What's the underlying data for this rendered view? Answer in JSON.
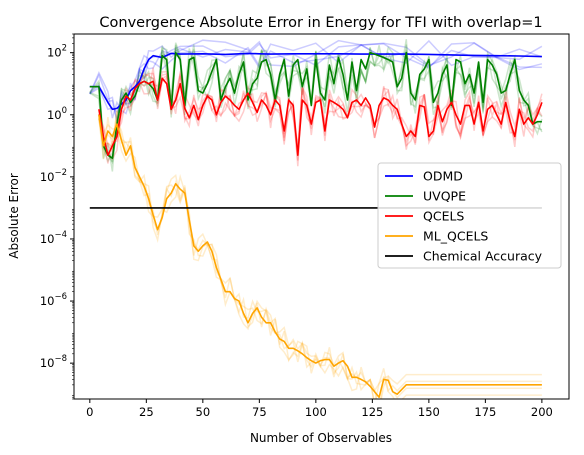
{
  "chart_data": {
    "type": "line",
    "title": "Convergence Absolute Error in Energy for TFI with overlap=1",
    "xlabel": "Number of Observables",
    "ylabel": "Absolute Error",
    "yscale": "log",
    "xlim": [
      -7,
      212
    ],
    "ylim": [
      7e-10,
      400
    ],
    "x_ticks": [
      0,
      25,
      50,
      75,
      100,
      125,
      150,
      175,
      200
    ],
    "y_ticks": [
      {
        "value": 1e-08,
        "base": "10",
        "exp": "−8"
      },
      {
        "value": 1e-06,
        "base": "10",
        "exp": "−6"
      },
      {
        "value": 0.0001,
        "base": "10",
        "exp": "−4"
      },
      {
        "value": 0.01,
        "base": "10",
        "exp": "−2"
      },
      {
        "value": 1,
        "base": "10",
        "exp": "0"
      },
      {
        "value": 100,
        "base": "10",
        "exp": "2"
      }
    ],
    "legend_position": "center-right",
    "series": [
      {
        "name": "ODMD",
        "color": "#0000ff",
        "x": [
          0,
          4,
          8,
          10,
          12,
          14,
          16,
          18,
          20,
          22,
          24,
          26,
          28,
          32,
          36,
          40,
          50,
          60,
          70,
          75,
          80,
          90,
          100,
          110,
          120,
          130,
          140,
          150,
          160,
          170,
          180,
          190,
          200
        ],
        "y": [
          8,
          8,
          2.5,
          1.5,
          1.6,
          2.2,
          3,
          6,
          8,
          12,
          30,
          60,
          80,
          70,
          95,
          90,
          92,
          88,
          95,
          92,
          90,
          92,
          92,
          92,
          90,
          90,
          90,
          88,
          85,
          82,
          80,
          78,
          75
        ]
      },
      {
        "name": "UVQPE",
        "color": "#008000",
        "x": [
          0,
          4,
          6,
          8,
          10,
          12,
          14,
          16,
          18,
          20,
          22,
          24,
          26,
          28,
          30,
          32,
          34,
          36,
          38,
          40,
          42,
          44,
          46,
          48,
          50,
          52,
          54,
          56,
          58,
          60,
          62,
          64,
          66,
          68,
          70,
          72,
          74,
          76,
          78,
          80,
          82,
          84,
          86,
          88,
          90,
          92,
          94,
          96,
          98,
          100,
          102,
          104,
          106,
          108,
          110,
          112,
          114,
          116,
          118,
          120,
          122,
          124,
          126,
          128,
          130,
          132,
          134,
          136,
          138,
          140,
          142,
          144,
          146,
          148,
          150,
          152,
          154,
          156,
          158,
          160,
          162,
          164,
          166,
          168,
          170,
          172,
          174,
          176,
          178,
          180,
          182,
          184,
          186,
          188,
          190,
          192,
          194,
          196,
          198,
          200
        ],
        "y": [
          8,
          8,
          0.1,
          0.05,
          0.04,
          0.5,
          3,
          5,
          2.5,
          4,
          10,
          12,
          10,
          7,
          3,
          80,
          60,
          1.5,
          100,
          60,
          2,
          60,
          70,
          6,
          5,
          10,
          25,
          60,
          3,
          8,
          15,
          5,
          20,
          50,
          3,
          10,
          15,
          50,
          60,
          20,
          3,
          20,
          60,
          4,
          40,
          60,
          8,
          30,
          2,
          60,
          5,
          3,
          40,
          10,
          70,
          20,
          3,
          50,
          6,
          60,
          30,
          100,
          90,
          80,
          70,
          60,
          50,
          8,
          15,
          100,
          5,
          3,
          20,
          30,
          60,
          2.5,
          5,
          20,
          40,
          2,
          60,
          50,
          10,
          20,
          5,
          50,
          2.5,
          60,
          40,
          20,
          5,
          6,
          20,
          60,
          6,
          3,
          2,
          0.5,
          0.6,
          0.6
        ]
      },
      {
        "name": "QCELS",
        "color": "#ff0000",
        "x": [
          4,
          6,
          8,
          10,
          12,
          14,
          16,
          18,
          20,
          22,
          24,
          26,
          28,
          30,
          32,
          34,
          36,
          38,
          40,
          42,
          44,
          46,
          48,
          50,
          52,
          54,
          56,
          58,
          60,
          62,
          64,
          66,
          68,
          70,
          72,
          74,
          76,
          78,
          80,
          82,
          84,
          86,
          88,
          90,
          92,
          94,
          96,
          98,
          100,
          102,
          104,
          106,
          108,
          110,
          112,
          114,
          116,
          118,
          120,
          122,
          124,
          126,
          128,
          130,
          132,
          134,
          136,
          138,
          140,
          142,
          144,
          146,
          148,
          150,
          152,
          154,
          156,
          158,
          160,
          162,
          164,
          166,
          168,
          170,
          172,
          174,
          176,
          178,
          180,
          182,
          184,
          186,
          188,
          190,
          192,
          194,
          196,
          198,
          200
        ],
        "y": [
          1.5,
          0.2,
          0.05,
          0.1,
          0.2,
          1.5,
          4,
          3,
          7,
          10,
          12,
          10,
          12,
          3,
          15,
          10,
          1.5,
          3,
          10,
          1.6,
          0.8,
          2,
          0.7,
          2,
          4,
          3,
          1,
          2.5,
          4,
          3,
          2,
          1.5,
          3,
          5,
          2.5,
          1.2,
          3,
          2,
          1,
          3,
          2,
          0.3,
          3,
          2,
          0.05,
          3,
          2,
          0.5,
          2.5,
          3,
          0.3,
          3,
          2.5,
          2,
          1.5,
          0.8,
          2.5,
          3,
          2,
          3.5,
          2,
          0.4,
          2,
          3.5,
          3,
          2,
          1.5,
          0.5,
          0.2,
          0.3,
          0.2,
          2,
          1.8,
          0.2,
          0.3,
          2,
          0.6,
          1.5,
          2.5,
          1,
          0.5,
          2,
          2,
          0.5,
          2.5,
          0.3,
          1.5,
          2,
          1,
          0.5,
          2.5,
          0.6,
          0.2,
          1.5,
          0.5,
          0.8,
          0.5,
          1,
          2.5
        ]
      },
      {
        "name": "ML_QCELS",
        "color": "#ffa500",
        "x": [
          4,
          6,
          8,
          10,
          12,
          14,
          16,
          18,
          20,
          22,
          24,
          26,
          28,
          30,
          32,
          34,
          36,
          38,
          40,
          42,
          44,
          46,
          48,
          50,
          52,
          54,
          56,
          58,
          60,
          62,
          64,
          66,
          68,
          70,
          72,
          74,
          76,
          78,
          80,
          82,
          84,
          86,
          88,
          90,
          92,
          94,
          96,
          98,
          100,
          102,
          104,
          106,
          108,
          110,
          112,
          114,
          116,
          118,
          120,
          122,
          124,
          126,
          128,
          130,
          132,
          134,
          136,
          140,
          150,
          160,
          170,
          180,
          190,
          200
        ],
        "y": [
          1,
          0.1,
          0.3,
          0.2,
          0.5,
          0.15,
          0.05,
          0.1,
          0.02,
          0.01,
          0.005,
          0.002,
          0.0006,
          0.0002,
          0.0005,
          0.002,
          0.003,
          0.006,
          0.004,
          0.003,
          0.0004,
          6e-05,
          4e-05,
          6e-05,
          8e-05,
          4e-05,
          1.2e-05,
          5e-06,
          2e-06,
          2e-06,
          1.2e-06,
          1e-06,
          4e-07,
          2e-07,
          4e-07,
          6e-07,
          3e-07,
          2e-07,
          2e-07,
          1e-07,
          6e-08,
          5e-08,
          3e-08,
          3e-08,
          2.5e-08,
          2e-08,
          1.5e-08,
          1.2e-08,
          1e-08,
          1.2e-08,
          1.3e-08,
          1.3e-08,
          8e-09,
          1e-08,
          1.2e-08,
          8e-09,
          3.5e-09,
          3.5e-09,
          3e-09,
          2.5e-09,
          1.8e-09,
          1.2e-09,
          8e-10,
          3e-09,
          2.8e-09,
          1.2e-09,
          1e-09,
          2e-09,
          2e-09,
          2e-09,
          2e-09,
          2e-09,
          2e-09,
          2e-09
        ]
      },
      {
        "name": "Chemical Accuracy",
        "color": "#000000",
        "x": [
          0,
          200
        ],
        "y": [
          0.001,
          0.001
        ]
      }
    ]
  }
}
